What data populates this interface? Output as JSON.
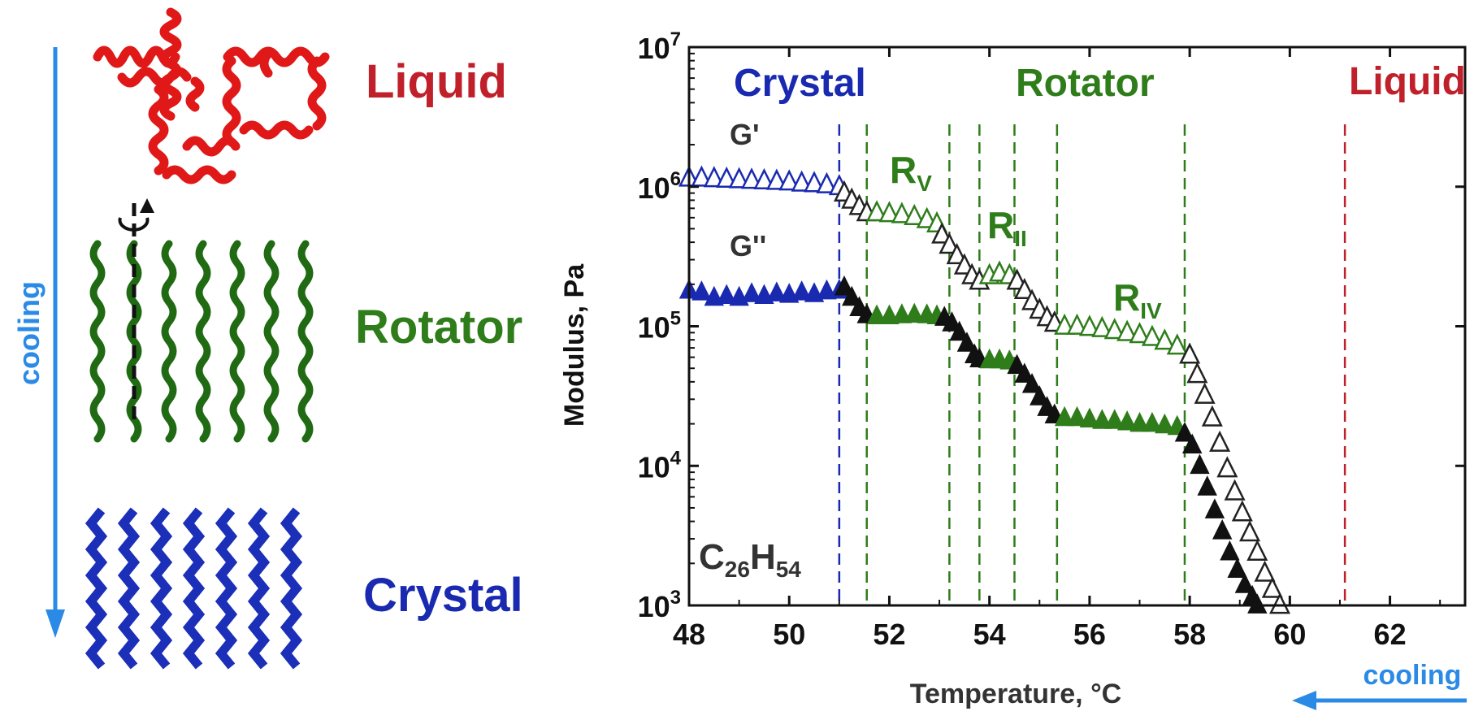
{
  "left_panel": {
    "cooling_label": "cooling",
    "phases": [
      {
        "key": "liquid",
        "label": "Liquid",
        "color": "#c0202a"
      },
      {
        "key": "rotator",
        "label": "Rotator",
        "color": "#2e7d1a"
      },
      {
        "key": "crystal",
        "label": "Crystal",
        "color": "#1a2ab0"
      }
    ],
    "chain_colors": {
      "liquid": "#e01818",
      "rotator": "#1f6a12",
      "crystal": "#1c2fb8"
    },
    "arrow_color": "#2a8ae6"
  },
  "chart_data": {
    "type": "scatter",
    "xlabel": "Temperature, °C",
    "ylabel": "Modulus, Pa",
    "xlim": [
      48,
      63.5
    ],
    "ylim": [
      1000,
      10000000
    ],
    "yscale": "log",
    "xticks": [
      48,
      50,
      52,
      54,
      56,
      58,
      60,
      62
    ],
    "yticks": [
      {
        "value": 1000,
        "base": "10",
        "exp": "3"
      },
      {
        "value": 10000,
        "base": "10",
        "exp": "4"
      },
      {
        "value": 100000,
        "base": "10",
        "exp": "5"
      },
      {
        "value": 1000000,
        "base": "10",
        "exp": "6"
      },
      {
        "value": 10000000,
        "base": "10",
        "exp": "7"
      }
    ],
    "region_labels": [
      {
        "text": "Crystal",
        "color": "#1a2ab0"
      },
      {
        "text": "Rotator",
        "color": "#2e7d1a"
      },
      {
        "text": "Liquid",
        "color": "#c0202a"
      }
    ],
    "phase_labels": [
      {
        "main": "R",
        "sub": "V",
        "color": "#2e7d1a"
      },
      {
        "main": "R",
        "sub": "II",
        "color": "#2e7d1a"
      },
      {
        "main": "R",
        "sub": "IV",
        "color": "#2e7d1a"
      }
    ],
    "series_labels": [
      "G'",
      "G''"
    ],
    "compound": {
      "main1": "C",
      "sub1": "26",
      "main2": "H",
      "sub2": "54"
    },
    "cooling_label": "cooling",
    "transitions": [
      {
        "x": 51.0,
        "color": "#1a2ab0"
      },
      {
        "x": 51.55,
        "color": "#2e7d1a"
      },
      {
        "x": 53.2,
        "color": "#2e7d1a"
      },
      {
        "x": 53.8,
        "color": "#2e7d1a"
      },
      {
        "x": 54.5,
        "color": "#2e7d1a"
      },
      {
        "x": 55.35,
        "color": "#2e7d1a"
      },
      {
        "x": 57.9,
        "color": "#2e7d1a"
      },
      {
        "x": 61.1,
        "color": "#c0202a"
      }
    ],
    "series": [
      {
        "name": "G'",
        "marker": "open-triangle",
        "segments": [
          {
            "color": "#1a2ab0",
            "points": [
              [
                48.0,
                1150000
              ],
              [
                48.25,
                1150000
              ],
              [
                48.5,
                1140000
              ],
              [
                48.75,
                1130000
              ],
              [
                49.0,
                1120000
              ],
              [
                49.25,
                1110000
              ],
              [
                49.5,
                1100000
              ],
              [
                49.75,
                1090000
              ],
              [
                50.0,
                1080000
              ],
              [
                50.25,
                1060000
              ],
              [
                50.5,
                1050000
              ],
              [
                50.75,
                1030000
              ],
              [
                51.0,
                1000000
              ]
            ]
          },
          {
            "color": "#222222",
            "points": [
              [
                51.1,
                900000
              ],
              [
                51.25,
                800000
              ],
              [
                51.4,
                720000
              ],
              [
                51.55,
                650000
              ]
            ]
          },
          {
            "color": "#2e7d1a",
            "points": [
              [
                51.75,
                650000
              ],
              [
                52.0,
                640000
              ],
              [
                52.25,
                630000
              ],
              [
                52.5,
                610000
              ],
              [
                52.75,
                580000
              ],
              [
                52.95,
                540000
              ]
            ]
          },
          {
            "color": "#222222",
            "points": [
              [
                53.05,
                450000
              ],
              [
                53.2,
                380000
              ],
              [
                53.35,
                320000
              ],
              [
                53.5,
                270000
              ],
              [
                53.65,
                230000
              ],
              [
                53.8,
                210000
              ]
            ]
          },
          {
            "color": "#2e7d1a",
            "points": [
              [
                54.0,
                230000
              ],
              [
                54.2,
                240000
              ],
              [
                54.4,
                230000
              ]
            ]
          },
          {
            "color": "#222222",
            "points": [
              [
                54.55,
                210000
              ],
              [
                54.7,
                180000
              ],
              [
                54.85,
                150000
              ],
              [
                55.0,
                130000
              ],
              [
                55.15,
                115000
              ],
              [
                55.3,
                105000
              ]
            ]
          },
          {
            "color": "#2e7d1a",
            "points": [
              [
                55.5,
                100000
              ],
              [
                55.75,
                100000
              ],
              [
                56.0,
                98000
              ],
              [
                56.25,
                96000
              ],
              [
                56.5,
                93000
              ],
              [
                56.75,
                90000
              ],
              [
                57.0,
                87000
              ],
              [
                57.25,
                83000
              ],
              [
                57.5,
                78000
              ],
              [
                57.75,
                72000
              ]
            ]
          },
          {
            "color": "#222222",
            "points": [
              [
                58.0,
                62000
              ],
              [
                58.15,
                45000
              ],
              [
                58.3,
                32000
              ],
              [
                58.45,
                22000
              ],
              [
                58.6,
                14500
              ],
              [
                58.75,
                9500
              ],
              [
                58.9,
                6500
              ],
              [
                59.05,
                4600
              ],
              [
                59.2,
                3300
              ],
              [
                59.35,
                2400
              ],
              [
                59.5,
                1700
              ],
              [
                59.65,
                1300
              ],
              [
                59.8,
                1000
              ]
            ]
          }
        ]
      },
      {
        "name": "G''",
        "marker": "filled-triangle",
        "segments": [
          {
            "color": "#1a2ab0",
            "points": [
              [
                48.0,
                180000
              ],
              [
                48.25,
                175000
              ],
              [
                48.5,
                160000
              ],
              [
                48.75,
                165000
              ],
              [
                49.0,
                160000
              ],
              [
                49.25,
                170000
              ],
              [
                49.5,
                165000
              ],
              [
                49.75,
                172000
              ],
              [
                50.0,
                168000
              ],
              [
                50.25,
                175000
              ],
              [
                50.5,
                170000
              ],
              [
                50.75,
                178000
              ],
              [
                51.0,
                180000
              ]
            ]
          },
          {
            "color": "#111111",
            "points": [
              [
                51.1,
                190000
              ],
              [
                51.25,
                160000
              ],
              [
                51.4,
                135000
              ],
              [
                51.55,
                120000
              ]
            ]
          },
          {
            "color": "#2e7d1a",
            "points": [
              [
                51.75,
                118000
              ],
              [
                52.0,
                118000
              ],
              [
                52.25,
                120000
              ],
              [
                52.5,
                121000
              ],
              [
                52.75,
                120000
              ],
              [
                52.95,
                118000
              ]
            ]
          },
          {
            "color": "#111111",
            "points": [
              [
                53.1,
                115000
              ],
              [
                53.25,
                105000
              ],
              [
                53.4,
                90000
              ],
              [
                53.55,
                75000
              ],
              [
                53.7,
                62000
              ],
              [
                53.8,
                58000
              ]
            ]
          },
          {
            "color": "#2e7d1a",
            "points": [
              [
                54.0,
                57000
              ],
              [
                54.2,
                57000
              ],
              [
                54.4,
                56000
              ]
            ]
          },
          {
            "color": "#111111",
            "points": [
              [
                54.55,
                52000
              ],
              [
                54.7,
                45000
              ],
              [
                54.85,
                38000
              ],
              [
                55.0,
                31000
              ],
              [
                55.15,
                26000
              ],
              [
                55.3,
                23000
              ]
            ]
          },
          {
            "color": "#2e7d1a",
            "points": [
              [
                55.5,
                22000
              ],
              [
                55.75,
                22000
              ],
              [
                56.0,
                21500
              ],
              [
                56.25,
                21000
              ],
              [
                56.5,
                21000
              ],
              [
                56.75,
                20500
              ],
              [
                57.0,
                20000
              ],
              [
                57.25,
                20000
              ],
              [
                57.5,
                19500
              ],
              [
                57.75,
                19000
              ]
            ]
          },
          {
            "color": "#111111",
            "points": [
              [
                57.9,
                17000
              ],
              [
                58.05,
                14000
              ],
              [
                58.2,
                10000
              ],
              [
                58.35,
                7000
              ],
              [
                58.5,
                4800
              ],
              [
                58.65,
                3400
              ],
              [
                58.8,
                2400
              ],
              [
                58.95,
                1800
              ],
              [
                59.1,
                1400
              ],
              [
                59.25,
                1150
              ],
              [
                59.35,
                1000
              ]
            ]
          }
        ]
      }
    ]
  }
}
